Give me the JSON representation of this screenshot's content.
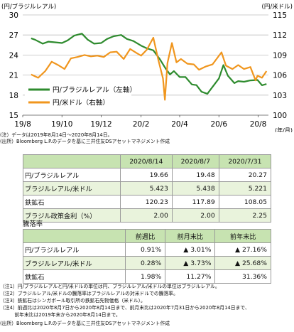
{
  "chart_data": {
    "type": "line",
    "left_axis": {
      "unit": "(円/ブラジルレアル)",
      "ylim": [
        15,
        30
      ],
      "ticks": [
        "15",
        "18",
        "21",
        "24",
        "27",
        "30"
      ]
    },
    "right_axis": {
      "unit": "(円/米ドル)",
      "ylim": [
        100,
        115
      ],
      "ticks": [
        "100",
        "103",
        "106",
        "109",
        "112",
        "115"
      ]
    },
    "x_axis": {
      "ticks": [
        "19/8",
        "19/10",
        "19/12",
        "20/2",
        "20/4",
        "20/6",
        "20/8"
      ],
      "unit": "(年/月)"
    },
    "series": [
      {
        "name": "円/ブラジルレアル（左軸）",
        "axis": "left",
        "color": "#2e8b2e",
        "points": [
          [
            "2019-08-14",
            26.5
          ],
          [
            "2019-08-20",
            26.3
          ],
          [
            "2019-09-01",
            25.7
          ],
          [
            "2019-09-10",
            26.0
          ],
          [
            "2019-09-20",
            25.9
          ],
          [
            "2019-10-01",
            25.8
          ],
          [
            "2019-10-10",
            26.2
          ],
          [
            "2019-10-20",
            26.9
          ],
          [
            "2019-11-01",
            27.2
          ],
          [
            "2019-11-10",
            26.3
          ],
          [
            "2019-11-20",
            25.7
          ],
          [
            "2019-12-01",
            25.8
          ],
          [
            "2019-12-10",
            26.4
          ],
          [
            "2019-12-20",
            26.8
          ],
          [
            "2020-01-01",
            27.0
          ],
          [
            "2020-01-10",
            26.4
          ],
          [
            "2020-01-20",
            26.1
          ],
          [
            "2020-02-01",
            25.4
          ],
          [
            "2020-02-10",
            25.0
          ],
          [
            "2020-02-20",
            24.7
          ],
          [
            "2020-03-01",
            23.4
          ],
          [
            "2020-03-10",
            22.0
          ],
          [
            "2020-03-17",
            21.1
          ],
          [
            "2020-03-23",
            21.6
          ],
          [
            "2020-04-01",
            20.7
          ],
          [
            "2020-04-10",
            20.7
          ],
          [
            "2020-04-20",
            19.6
          ],
          [
            "2020-04-27",
            19.5
          ],
          [
            "2020-05-05",
            18.5
          ],
          [
            "2020-05-14",
            18.2
          ],
          [
            "2020-05-25",
            19.6
          ],
          [
            "2020-06-01",
            20.5
          ],
          [
            "2020-06-08",
            22.5
          ],
          [
            "2020-06-15",
            20.9
          ],
          [
            "2020-06-25",
            19.8
          ],
          [
            "2020-07-01",
            20.1
          ],
          [
            "2020-07-10",
            20.0
          ],
          [
            "2020-07-20",
            20.2
          ],
          [
            "2020-07-31",
            20.27
          ],
          [
            "2020-08-07",
            19.48
          ],
          [
            "2020-08-14",
            19.66
          ]
        ]
      },
      {
        "name": "円/米ドル（右軸）",
        "axis": "right",
        "color": "#f0961e",
        "points": [
          [
            "2019-08-14",
            106.1
          ],
          [
            "2019-08-25",
            105.6
          ],
          [
            "2019-09-05",
            106.6
          ],
          [
            "2019-09-15",
            108.0
          ],
          [
            "2019-09-25",
            107.5
          ],
          [
            "2019-10-05",
            106.9
          ],
          [
            "2019-10-15",
            108.5
          ],
          [
            "2019-10-25",
            108.7
          ],
          [
            "2019-11-05",
            109.0
          ],
          [
            "2019-11-15",
            108.8
          ],
          [
            "2019-11-25",
            108.9
          ],
          [
            "2019-12-05",
            108.7
          ],
          [
            "2019-12-15",
            109.4
          ],
          [
            "2019-12-25",
            109.5
          ],
          [
            "2020-01-05",
            108.4
          ],
          [
            "2020-01-15",
            109.9
          ],
          [
            "2020-01-25",
            109.3
          ],
          [
            "2020-02-01",
            108.9
          ],
          [
            "2020-02-10",
            109.8
          ],
          [
            "2020-02-20",
            111.6
          ],
          [
            "2020-02-28",
            108.2
          ],
          [
            "2020-03-06",
            105.5
          ],
          [
            "2020-03-09",
            102.3
          ],
          [
            "2020-03-13",
            107.8
          ],
          [
            "2020-03-20",
            110.8
          ],
          [
            "2020-03-27",
            107.9
          ],
          [
            "2020-04-03",
            108.4
          ],
          [
            "2020-04-13",
            107.7
          ],
          [
            "2020-04-23",
            107.6
          ],
          [
            "2020-05-01",
            106.8
          ],
          [
            "2020-05-12",
            107.3
          ],
          [
            "2020-05-22",
            107.6
          ],
          [
            "2020-06-05",
            109.4
          ],
          [
            "2020-06-12",
            107.4
          ],
          [
            "2020-06-22",
            106.9
          ],
          [
            "2020-07-01",
            107.5
          ],
          [
            "2020-07-10",
            106.9
          ],
          [
            "2020-07-20",
            107.2
          ],
          [
            "2020-07-28",
            105.2
          ],
          [
            "2020-07-31",
            105.9
          ],
          [
            "2020-08-07",
            105.6
          ],
          [
            "2020-08-14",
            106.6
          ]
        ]
      }
    ]
  },
  "notes_chart": [
    "(注）データは2019年8月14日～2020年8月14日。",
    "(出所）Bloomberg L.P.のデータを基に三井住友DSアセットマネジメント作成"
  ],
  "table1": {
    "headers": [
      "",
      "2020/8/14",
      "2020/8/7",
      "2020/7/31"
    ],
    "rows": [
      [
        "円/ブラジルレアル",
        "19.66",
        "19.48",
        "20.27"
      ],
      [
        "ブラジルレアル/米ドル",
        "5.423",
        "5.438",
        "5.221"
      ],
      [
        "鉄鉱石",
        "120.23",
        "117.89",
        "108.05"
      ],
      [
        "ブラジル政策金利（%）",
        "2.00",
        "2.00",
        "2.25"
      ]
    ]
  },
  "table2_title": "騰落率",
  "table2": {
    "headers": [
      "",
      "前週比",
      "前月末比",
      "前年末比"
    ],
    "rows": [
      [
        "円/ブラジルレアル",
        "0.91%",
        "▲ 3.01%",
        "▲ 27.16%"
      ],
      [
        "ブラジルレアル/米ドル",
        "0.28%",
        "▲ 3.73%",
        "▲ 25.68%"
      ],
      [
        "鉄鉱石",
        "1.98%",
        "11.27%",
        "31.36%"
      ]
    ]
  },
  "notes_table": [
    "（注1）円/ブラジルレアルと円/米ドルの単位は円、ブラジルレアル/米ドルの単位はブラジルレアル。",
    "（注2）ブラジルレアル/米ドルの騰落率はブラジルレアルの対米ドルでの騰落率。",
    "（注3）鉄鉱石はシンガポール取引所の鉄鉱石先物価格（米ドル）。",
    "（注4）前週比は2020年8月7日から2020年8月14日まで、前月末比は2020年7月31日から2020年8月14日まで、",
    "　　　前年末比は2019年末から2020年8月14日まで。",
    "(出所）Bloomberg L.P.のデータを基に三井住友DSアセットマネジメント作成"
  ]
}
